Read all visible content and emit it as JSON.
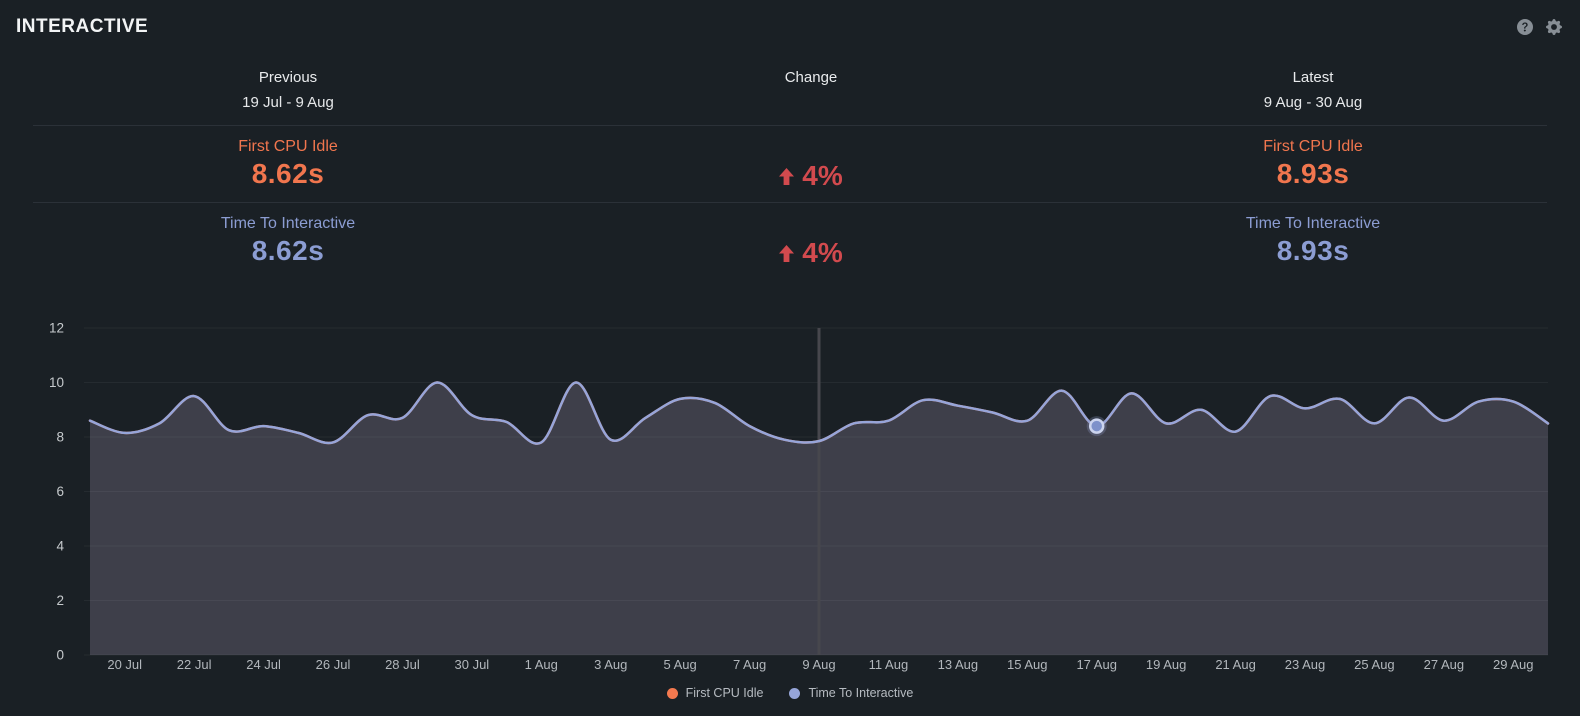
{
  "header": {
    "title": "INTERACTIVE",
    "icons": [
      {
        "name": "help-icon"
      },
      {
        "name": "settings-icon"
      }
    ]
  },
  "comparison": {
    "previous_label": "Previous",
    "previous_range": "19 Jul - 9 Aug",
    "change_label": "Change",
    "latest_label": "Latest",
    "latest_range": "9 Aug - 30 Aug",
    "rows": [
      {
        "metric": "First CPU Idle",
        "previous_value": "8.62s",
        "change": "4%",
        "change_direction": "up",
        "latest_value": "8.93s",
        "color": "#f1764e"
      },
      {
        "metric": "Time To Interactive",
        "previous_value": "8.62s",
        "change": "4%",
        "change_direction": "up",
        "latest_value": "8.93s",
        "color": "#8c9dd3"
      }
    ]
  },
  "colors": {
    "background": "#1a2025",
    "first_cpu_idle": "#f1764e",
    "time_to_interactive": "#8c9dd3",
    "change_negative": "#d24a4e",
    "area_fill": "#3e3f4a",
    "grid": "rgba(255,255,255,0.05)",
    "period_divider": "#47474d",
    "x_axis_text": "#b2b7bc",
    "y_axis_text": "#c6cacd",
    "marker_fill": "#7e91ca",
    "marker_ring": "#ccd4ee",
    "icon": "#878e95"
  },
  "chart_data": {
    "type": "area",
    "title": "",
    "xlabel": "",
    "ylabel": "",
    "ylim": [
      0,
      12
    ],
    "yticks": [
      12,
      10,
      8,
      6,
      4,
      2,
      0
    ],
    "grid": true,
    "legend_position": "bottom",
    "x": [
      "19 Jul",
      "20 Jul",
      "21 Jul",
      "22 Jul",
      "23 Jul",
      "24 Jul",
      "25 Jul",
      "26 Jul",
      "27 Jul",
      "28 Jul",
      "29 Jul",
      "30 Jul",
      "31 Jul",
      "1 Aug",
      "2 Aug",
      "3 Aug",
      "4 Aug",
      "5 Aug",
      "6 Aug",
      "7 Aug",
      "8 Aug",
      "9 Aug",
      "10 Aug",
      "11 Aug",
      "12 Aug",
      "13 Aug",
      "14 Aug",
      "15 Aug",
      "16 Aug",
      "17 Aug",
      "18 Aug",
      "19 Aug",
      "20 Aug",
      "21 Aug",
      "22 Aug",
      "23 Aug",
      "24 Aug",
      "25 Aug",
      "26 Aug",
      "27 Aug",
      "28 Aug",
      "29 Aug",
      "30 Aug"
    ],
    "xtick_labels": [
      "20 Jul",
      "22 Jul",
      "24 Jul",
      "26 Jul",
      "28 Jul",
      "30 Jul",
      "1 Aug",
      "3 Aug",
      "5 Aug",
      "7 Aug",
      "9 Aug",
      "11 Aug",
      "13 Aug",
      "15 Aug",
      "17 Aug",
      "19 Aug",
      "21 Aug",
      "23 Aug",
      "25 Aug",
      "27 Aug",
      "29 Aug"
    ],
    "series": [
      {
        "name": "First CPU Idle",
        "color": "#f4794f",
        "values": [
          8.6,
          8.15,
          8.5,
          9.5,
          8.25,
          8.4,
          8.15,
          7.8,
          8.8,
          8.7,
          10.0,
          8.8,
          8.55,
          7.8,
          10.0,
          7.9,
          8.7,
          9.4,
          9.25,
          8.4,
          7.9,
          7.85,
          8.5,
          8.6,
          9.35,
          9.15,
          8.9,
          8.6,
          9.7,
          8.4,
          9.6,
          8.5,
          9.0,
          8.2,
          9.5,
          9.05,
          9.4,
          8.5,
          9.45,
          8.6,
          9.3,
          9.3,
          8.5
        ]
      },
      {
        "name": "Time To Interactive",
        "color": "#96a5d9",
        "values": [
          8.6,
          8.15,
          8.5,
          9.5,
          8.25,
          8.4,
          8.15,
          7.8,
          8.8,
          8.7,
          10.0,
          8.8,
          8.55,
          7.8,
          10.0,
          7.9,
          8.7,
          9.4,
          9.25,
          8.4,
          7.9,
          7.85,
          8.5,
          8.6,
          9.35,
          9.15,
          8.9,
          8.6,
          9.7,
          8.4,
          9.6,
          8.5,
          9.0,
          8.2,
          9.5,
          9.05,
          9.4,
          8.5,
          9.45,
          8.6,
          9.3,
          9.3,
          8.5
        ]
      }
    ],
    "period_divider_at": "9 Aug",
    "highlight": {
      "series": "Time To Interactive",
      "x": "17 Aug",
      "value": 8.4
    }
  }
}
